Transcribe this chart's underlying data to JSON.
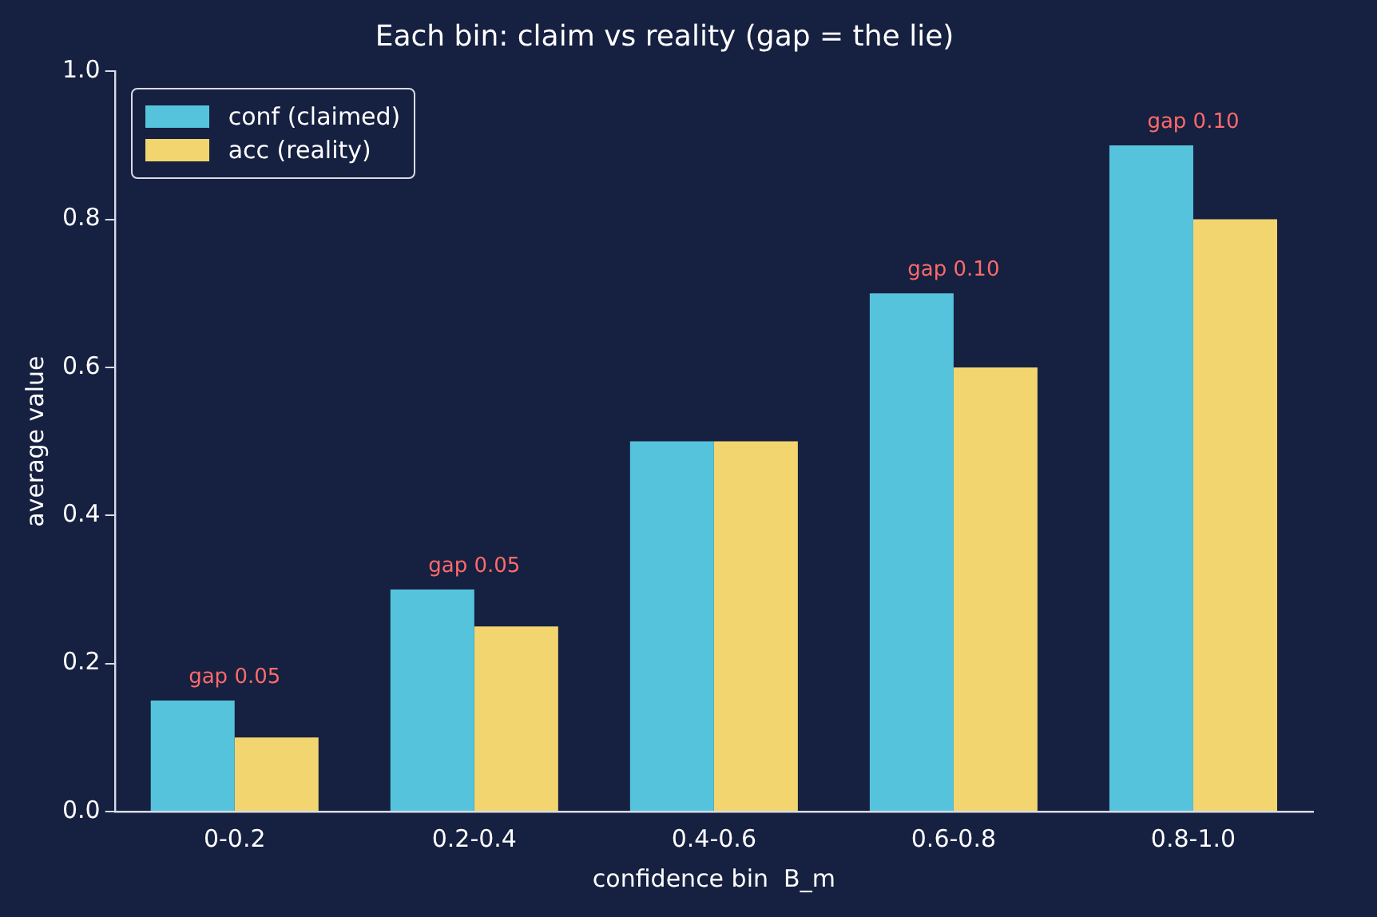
{
  "chart_data": {
    "type": "bar",
    "title": "Each bin: claim vs reality (gap = the lie)",
    "xlabel": "confidence bin  B_m",
    "ylabel": "average value",
    "categories": [
      "0-0.2",
      "0.2-0.4",
      "0.4-0.6",
      "0.6-0.8",
      "0.8-1.0"
    ],
    "series": [
      {
        "name": "conf (claimed)",
        "color": "#56c3dc",
        "values": [
          0.15,
          0.3,
          0.5,
          0.7,
          0.9
        ]
      },
      {
        "name": "acc (reality)",
        "color": "#f3d56f",
        "values": [
          0.1,
          0.25,
          0.5,
          0.6,
          0.8
        ]
      }
    ],
    "ylim": [
      0,
      1
    ],
    "yticks": [
      {
        "value": 0,
        "label": "0.0"
      },
      {
        "value": 0.2,
        "label": "0.2"
      },
      {
        "value": 0.4,
        "label": "0.4"
      },
      {
        "value": 0.6,
        "label": "0.6"
      },
      {
        "value": 0.8,
        "label": "0.8"
      },
      {
        "value": 1,
        "label": "1.0"
      }
    ],
    "annotations": [
      {
        "text": "gap 0.05",
        "x": "0-0.2",
        "y": 0.15
      },
      {
        "text": "gap 0.05",
        "x": "0.2-0.4",
        "y": 0.3
      },
      {
        "text": "gap 0.10",
        "x": "0.6-0.8",
        "y": 0.7
      },
      {
        "text": "gap 0.10",
        "x": "0.8-1.0",
        "y": 0.9
      }
    ],
    "grid": false,
    "legend": "top left"
  }
}
